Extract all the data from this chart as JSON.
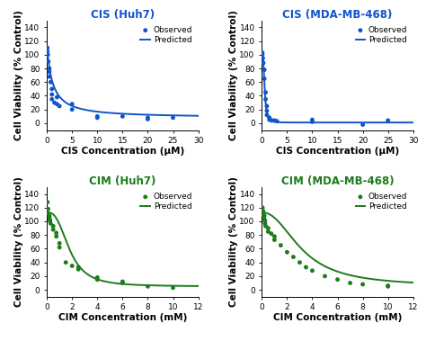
{
  "panels": [
    {
      "title": "CIS (Huh7)",
      "color": "#1155cc",
      "xlabel": "CIS Concentration (μM)",
      "ylabel": "Cell Viability (% Control)",
      "xlim": [
        0,
        30
      ],
      "ylim": [
        -10,
        150
      ],
      "yticks": [
        0,
        20,
        40,
        60,
        80,
        100,
        120,
        140
      ],
      "xticks": [
        0,
        5,
        10,
        15,
        20,
        25,
        30
      ],
      "observed_x": [
        0.1,
        0.1,
        0.2,
        0.3,
        0.5,
        0.5,
        0.5,
        0.75,
        1.0,
        1.0,
        1.0,
        1.5,
        2.0,
        2.0,
        2.5,
        5.0,
        5.0,
        10.0,
        10.0,
        15.0,
        20.0,
        20.0,
        25.0
      ],
      "observed_y": [
        110,
        105,
        100,
        90,
        80,
        75,
        68,
        60,
        50,
        42,
        35,
        30,
        38,
        28,
        25,
        28,
        20,
        10,
        8,
        10,
        8,
        6,
        8
      ],
      "curve_params": {
        "Emax": 105,
        "EC50": 1.2,
        "n": 1.1,
        "E0": 108,
        "Einf": 5
      }
    },
    {
      "title": "CIS (MDA-MB-468)",
      "color": "#1155cc",
      "xlabel": "CIS Concentration (μM)",
      "ylabel": "Cell Viability (% Control)",
      "xlim": [
        0,
        30
      ],
      "ylim": [
        -10,
        150
      ],
      "yticks": [
        0,
        20,
        40,
        60,
        80,
        100,
        120,
        140
      ],
      "xticks": [
        0,
        5,
        10,
        15,
        20,
        25,
        30
      ],
      "observed_x": [
        0.1,
        0.1,
        0.2,
        0.3,
        0.5,
        0.5,
        0.75,
        0.75,
        1.0,
        1.0,
        1.0,
        1.5,
        1.5,
        2.0,
        2.5,
        3.0,
        10.0,
        10.0,
        20.0,
        25.0
      ],
      "observed_y": [
        103,
        100,
        95,
        88,
        78,
        65,
        45,
        35,
        25,
        18,
        12,
        8,
        5,
        4,
        4,
        3,
        5,
        2,
        -2,
        4
      ],
      "curve_params": {
        "Emax": 102,
        "EC50": 0.55,
        "n": 3.0,
        "E0": 103,
        "Einf": 0
      }
    },
    {
      "title": "CIM (Huh7)",
      "color": "#1e7b1e",
      "xlabel": "CIM Concentration (mM)",
      "ylabel": "Cell Viability (% Control)",
      "xlim": [
        0,
        12
      ],
      "ylim": [
        -10,
        150
      ],
      "yticks": [
        0,
        20,
        40,
        60,
        80,
        100,
        120,
        140
      ],
      "xticks": [
        0,
        2,
        4,
        6,
        8,
        10,
        12
      ],
      "observed_x": [
        0.05,
        0.1,
        0.1,
        0.2,
        0.2,
        0.25,
        0.25,
        0.3,
        0.5,
        0.5,
        0.75,
        0.75,
        1.0,
        1.0,
        1.5,
        2.0,
        2.5,
        2.5,
        4.0,
        4.0,
        6.0,
        6.0,
        8.0,
        10.0
      ],
      "observed_y": [
        128,
        118,
        112,
        108,
        105,
        102,
        100,
        97,
        93,
        88,
        83,
        78,
        68,
        62,
        40,
        35,
        30,
        33,
        18,
        15,
        12,
        10,
        5,
        3
      ],
      "curve_params": {
        "Emax": 108,
        "EC50": 1.8,
        "n": 2.8,
        "E0": 113,
        "Einf": 0
      }
    },
    {
      "title": "CIM (MDA-MB-468)",
      "color": "#1e7b1e",
      "xlabel": "CIM Concentration (mM)",
      "ylabel": "Cell Viability (% Control)",
      "xlim": [
        0,
        12
      ],
      "ylim": [
        -10,
        150
      ],
      "yticks": [
        0,
        20,
        40,
        60,
        80,
        100,
        120,
        140
      ],
      "xticks": [
        0,
        2,
        4,
        6,
        8,
        10,
        12
      ],
      "observed_x": [
        0.05,
        0.1,
        0.1,
        0.2,
        0.2,
        0.25,
        0.25,
        0.3,
        0.5,
        0.5,
        0.75,
        1.0,
        1.0,
        1.5,
        2.0,
        2.5,
        3.0,
        3.5,
        4.0,
        5.0,
        6.0,
        7.0,
        8.0,
        10.0,
        10.0
      ],
      "observed_y": [
        120,
        115,
        110,
        108,
        103,
        100,
        97,
        93,
        90,
        85,
        82,
        78,
        73,
        65,
        55,
        48,
        40,
        33,
        28,
        20,
        15,
        10,
        8,
        6,
        5
      ],
      "curve_params": {
        "Emax": 108,
        "EC50": 3.2,
        "n": 2.2,
        "E0": 113,
        "Einf": 0
      }
    }
  ],
  "bg_color": "#ffffff",
  "title_fontsize": 8.5,
  "label_fontsize": 7.5,
  "tick_fontsize": 6.5,
  "legend_fontsize": 6.5,
  "marker_size": 3.5,
  "line_width": 1.4
}
